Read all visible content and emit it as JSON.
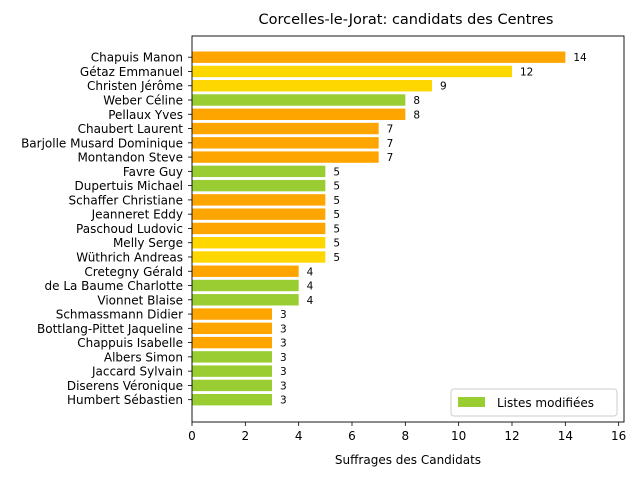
{
  "chart_data": {
    "type": "bar",
    "orientation": "horizontal",
    "title": "Corcelles-le-Jorat: candidats des Centres",
    "xlabel": "Suffrages des Candidats",
    "ylabel": "",
    "xlim": [
      0,
      16.2
    ],
    "xticks": [
      0,
      2,
      4,
      6,
      8,
      10,
      12,
      14,
      16
    ],
    "grid": false,
    "legend": {
      "placement": "lower-right",
      "entries": [
        {
          "label": "Listes modifiées",
          "color": "#9acd32"
        }
      ]
    },
    "colors": {
      "orange": "#ffa500",
      "gold": "#ffd700",
      "green": "#9acd32"
    },
    "categories": [
      "Chapuis Manon",
      "Gétaz Emmanuel",
      "Christen Jérôme",
      "Weber Céline",
      "Pellaux Yves",
      "Chaubert Laurent",
      "Barjolle Musard Dominique",
      "Montandon Steve",
      "Favre Guy",
      "Dupertuis Michael",
      "Schaffer Christiane",
      "Jeanneret Eddy",
      "Paschoud Ludovic",
      "Melly Serge",
      "Wüthrich Andreas",
      "Cretegny Gérald",
      "de La Baume Charlotte",
      "Vionnet Blaise",
      "Schmassmann Didier",
      "Bottlang-Pittet Jaqueline",
      "Chappuis Isabelle",
      "Albers Simon",
      "Jaccard Sylvain",
      "Diserens Véronique",
      "Humbert Sébastien"
    ],
    "values": [
      14,
      12,
      9,
      8,
      8,
      7,
      7,
      7,
      5,
      5,
      5,
      5,
      5,
      5,
      5,
      4,
      4,
      4,
      3,
      3,
      3,
      3,
      3,
      3,
      3
    ],
    "bar_colors": [
      "orange",
      "gold",
      "gold",
      "green",
      "orange",
      "orange",
      "orange",
      "orange",
      "green",
      "green",
      "orange",
      "orange",
      "orange",
      "gold",
      "gold",
      "orange",
      "green",
      "green",
      "orange",
      "orange",
      "orange",
      "green",
      "green",
      "green",
      "green"
    ]
  }
}
